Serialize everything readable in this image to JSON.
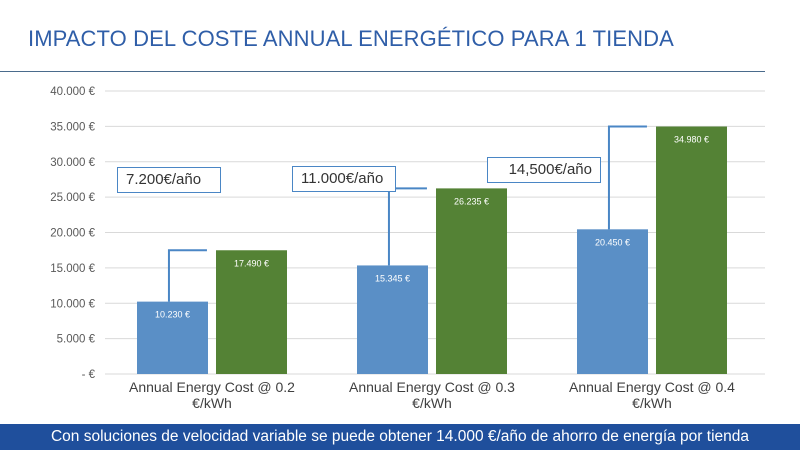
{
  "title": "IMPACTO DEL COSTE ANNUAL ENERGÉTICO PARA 1 TIENDA",
  "footer_banner": "Con soluciones de velocidad variable se puede obtener 14.000 €/año de ahorro de energía por tienda",
  "chart_data": {
    "type": "bar",
    "categories": [
      [
        "Annual Energy Cost @ 0.2",
        "€/kWh"
      ],
      [
        "Annual Energy Cost @ 0.3",
        "€/kWh"
      ],
      [
        "Annual Energy Cost @ 0.4",
        "€/kWh"
      ]
    ],
    "series": [
      {
        "values": [
          10230,
          15345,
          20450
        ],
        "labels": [
          "10.230 €",
          "15.345 €",
          "20.450 €"
        ],
        "color": "#5a8fc6"
      },
      {
        "values": [
          17490,
          26235,
          34980
        ],
        "labels": [
          "17.490 €",
          "26.235 €",
          "34.980 €"
        ],
        "color": "#548235"
      }
    ],
    "ylim": [
      0,
      40000
    ],
    "yticks": [
      0,
      5000,
      10000,
      15000,
      20000,
      25000,
      30000,
      35000,
      40000
    ],
    "ytick_labels": [
      "-   €",
      "5.000  €",
      "10.000  €",
      "15.000  €",
      "20.000  €",
      "25.000  €",
      "30.000  €",
      "35.000  €",
      "40.000  €"
    ],
    "grid": true,
    "annotations": [
      "7.200€/año",
      "11.000€/año",
      "14,500€/año"
    ]
  }
}
